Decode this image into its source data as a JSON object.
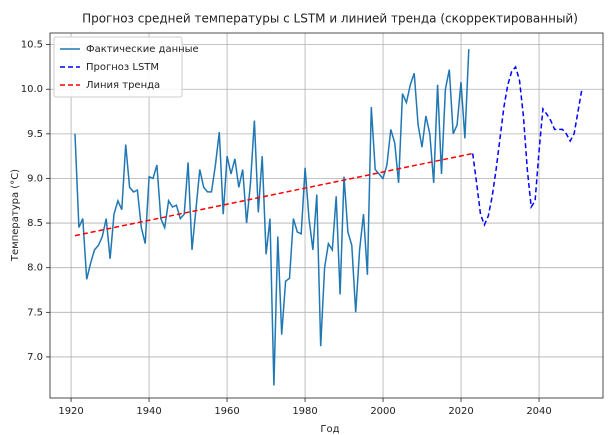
{
  "chart_data": {
    "type": "line",
    "title": "Прогноз средней температуры с LSTM и линией тренда (скорректированный)",
    "x_label": "Год",
    "y_label": "Температура (°C)",
    "xlim": [
      1914.6,
      2056.4
    ],
    "ylim": [
      6.54,
      10.63
    ],
    "xticks": [
      1920,
      1940,
      1960,
      1980,
      2000,
      2020,
      2040
    ],
    "yticks": [
      {
        "value": 7,
        "label": "7.0"
      },
      7.5,
      {
        "value": 8,
        "label": "8.0"
      },
      8.5,
      {
        "value": 9,
        "label": "9.0"
      },
      9.5,
      {
        "value": 10,
        "label": "10.0"
      },
      10.5
    ],
    "grid": true,
    "legend": "upper left",
    "series": [
      {
        "name": "Фактические данные",
        "color": "#1f77b4",
        "linestyle": "solid",
        "x": [
          1921,
          1922,
          1923,
          1924,
          1925,
          1926,
          1927,
          1928,
          1929,
          1930,
          1931,
          1932,
          1933,
          1934,
          1935,
          1936,
          1937,
          1938,
          1939,
          1940,
          1941,
          1942,
          1943,
          1944,
          1945,
          1946,
          1947,
          1948,
          1949,
          1950,
          1951,
          1952,
          1953,
          1954,
          1955,
          1956,
          1957,
          1958,
          1959,
          1960,
          1961,
          1962,
          1963,
          1964,
          1965,
          1966,
          1967,
          1968,
          1969,
          1970,
          1971,
          1972,
          1973,
          1974,
          1975,
          1976,
          1977,
          1978,
          1979,
          1980,
          1981,
          1982,
          1983,
          1984,
          1985,
          1986,
          1987,
          1988,
          1989,
          1990,
          1991,
          1992,
          1993,
          1994,
          1995,
          1996,
          1997,
          1998,
          1999,
          2000,
          2001,
          2002,
          2003,
          2004,
          2005,
          2006,
          2007,
          2008,
          2009,
          2010,
          2011,
          2012,
          2013,
          2014,
          2015,
          2016,
          2017,
          2018,
          2019,
          2020,
          2021,
          2022
        ],
        "values": [
          9.5,
          8.45,
          8.55,
          7.87,
          8.05,
          8.2,
          8.25,
          8.35,
          8.55,
          8.1,
          8.6,
          8.75,
          8.65,
          9.38,
          8.9,
          8.85,
          8.87,
          8.45,
          8.27,
          9.02,
          9.0,
          9.15,
          8.55,
          8.45,
          8.75,
          8.68,
          8.7,
          8.55,
          8.6,
          9.18,
          8.2,
          8.65,
          9.1,
          8.9,
          8.85,
          8.85,
          9.15,
          9.52,
          8.6,
          9.25,
          9.05,
          9.22,
          8.9,
          9.1,
          8.5,
          8.95,
          9.65,
          8.62,
          9.25,
          8.15,
          8.55,
          6.68,
          8.35,
          7.25,
          7.85,
          7.88,
          8.55,
          8.4,
          8.38,
          9.12,
          8.55,
          8.2,
          8.82,
          7.12,
          8.0,
          8.27,
          8.2,
          8.8,
          7.7,
          9.02,
          8.4,
          8.25,
          7.5,
          8.2,
          8.6,
          7.92,
          9.8,
          9.1,
          9.05,
          9.0,
          9.15,
          9.55,
          9.4,
          8.95,
          9.95,
          9.85,
          10.05,
          10.18,
          9.6,
          9.35,
          9.7,
          9.5,
          8.95,
          10.05,
          9.05,
          10.0,
          10.22,
          9.5,
          9.6,
          10.08,
          9.45,
          10.45
        ]
      },
      {
        "name": "Прогноз LSTM",
        "color": "#0000ff",
        "linestyle": "dashed",
        "x": [
          2023,
          2024,
          2025,
          2026,
          2027,
          2028,
          2029,
          2030,
          2031,
          2032,
          2033,
          2034,
          2035,
          2036,
          2037,
          2038,
          2039,
          2040,
          2041,
          2042,
          2043,
          2044,
          2045,
          2046,
          2047,
          2048,
          2049,
          2050,
          2051
        ],
        "values": [
          9.28,
          8.95,
          8.6,
          8.48,
          8.58,
          8.8,
          9.1,
          9.45,
          9.8,
          10.05,
          10.2,
          10.25,
          10.1,
          9.7,
          9.1,
          8.68,
          8.75,
          9.3,
          9.78,
          9.72,
          9.65,
          9.55,
          9.55,
          9.55,
          9.5,
          9.42,
          9.5,
          9.75,
          10.0
        ]
      },
      {
        "name": "Линия тренда",
        "color": "#ff0000",
        "linestyle": "dashed",
        "x": [
          1921,
          2023
        ],
        "values": [
          8.36,
          9.28
        ]
      }
    ]
  }
}
